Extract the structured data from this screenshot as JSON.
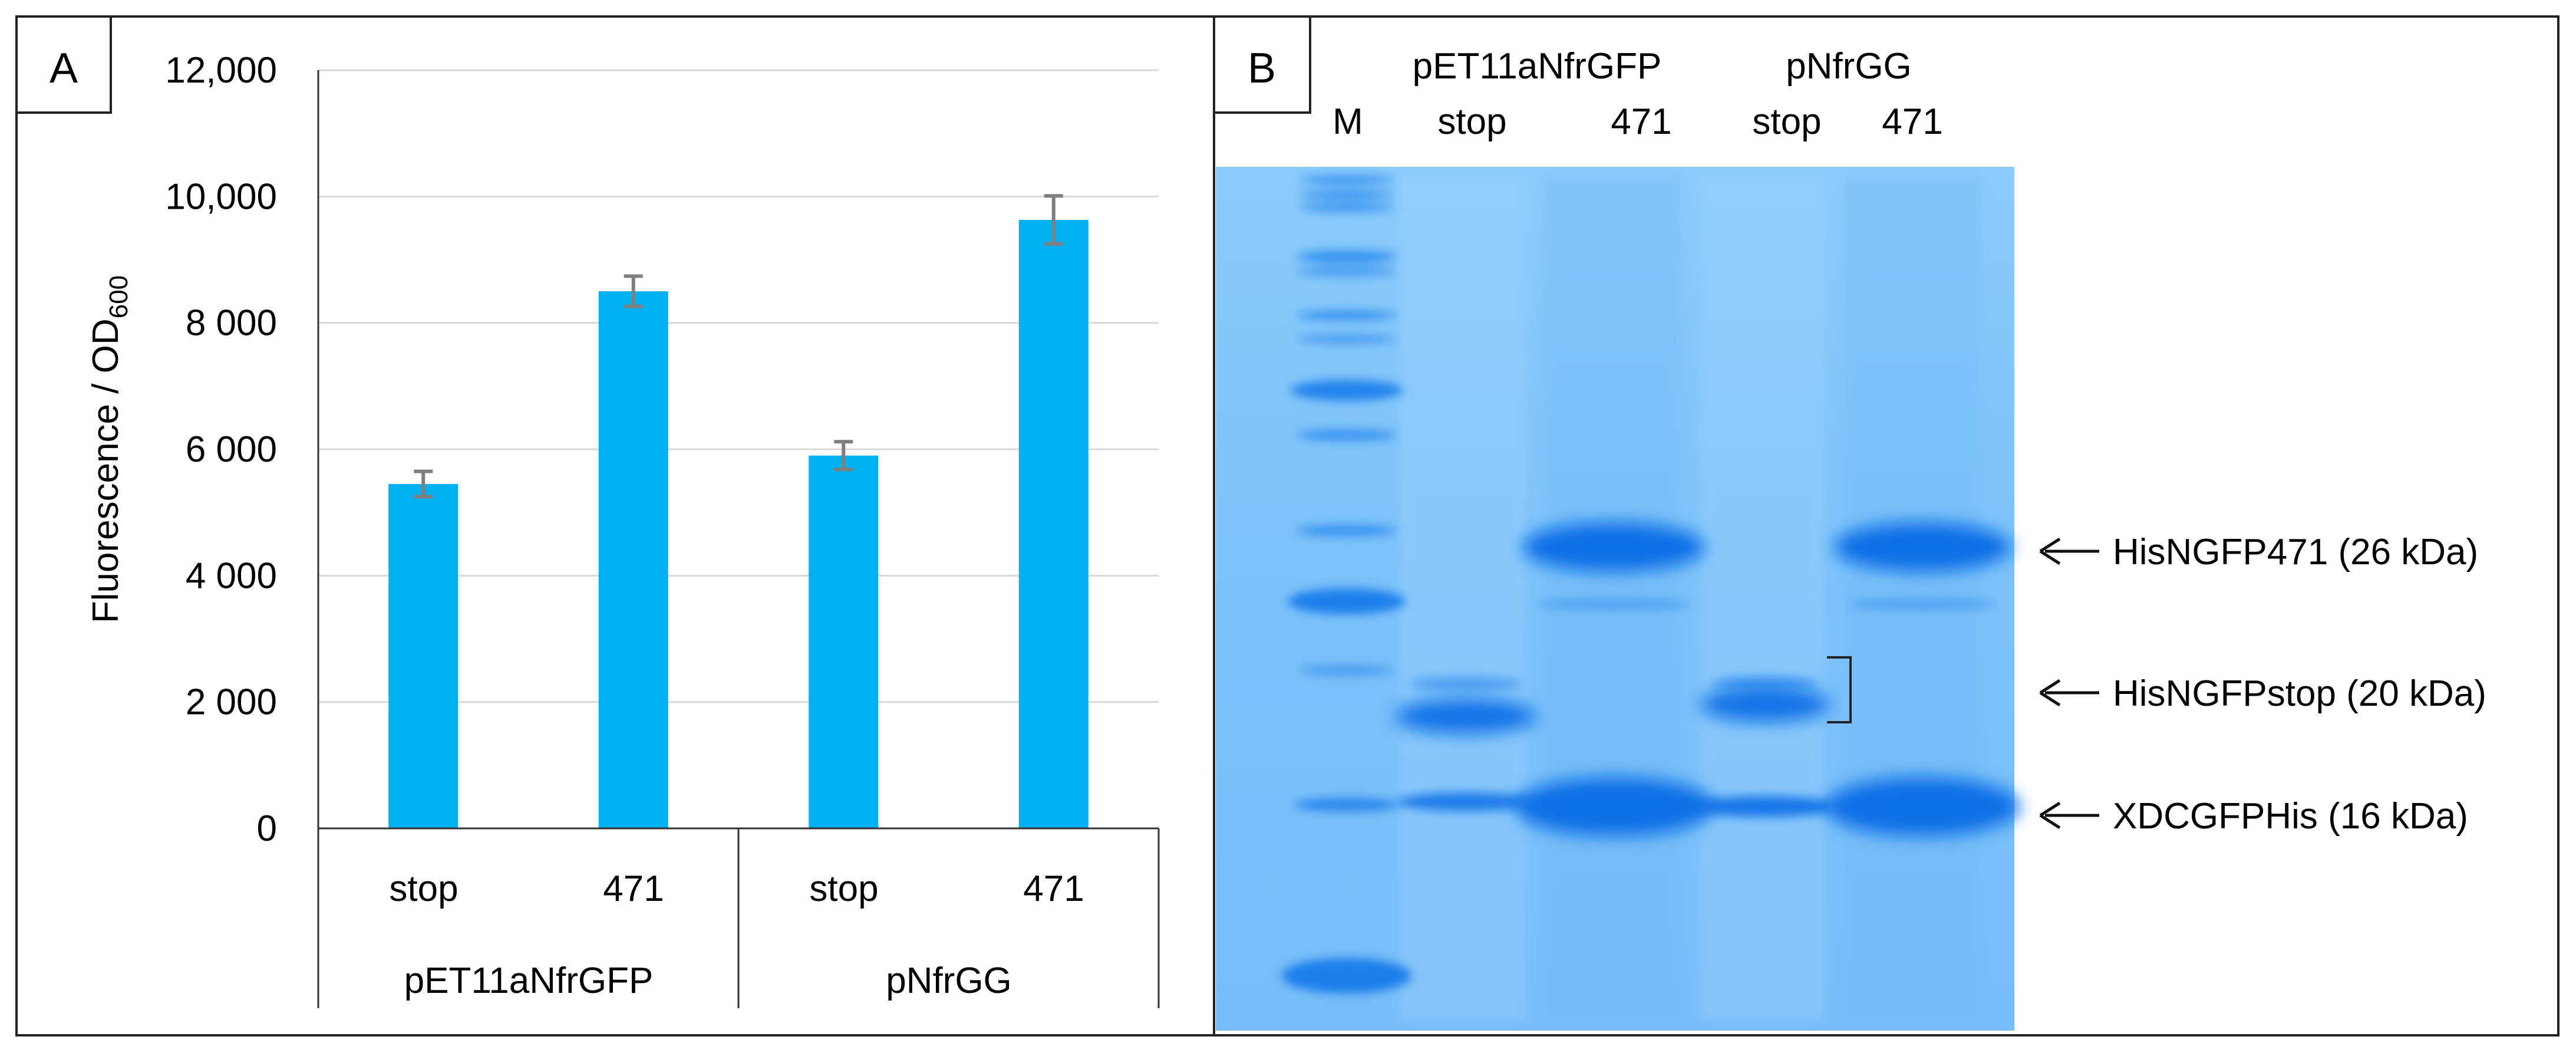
{
  "panel_a": {
    "label": "A",
    "ylabel_main": "Fluorescence / OD",
    "ylabel_sub": "600",
    "y_ticks": [
      "12,000",
      "10,000",
      "8 000",
      "6 000",
      "4 000",
      "2 000",
      "0"
    ],
    "groups": [
      {
        "name": "pET11aNfrGFP",
        "categories": [
          "stop",
          "471"
        ]
      },
      {
        "name": "pNfrGG",
        "categories": [
          "stop",
          "471"
        ]
      }
    ],
    "colors": {
      "bar": "#00B0F0",
      "error_bar": "#7f7f7f",
      "gridline": "#d9d9d9"
    }
  },
  "chart_data": {
    "type": "bar",
    "categories": [
      "stop",
      "471",
      "stop",
      "471"
    ],
    "group_labels": [
      "pET11aNfrGFP",
      "pNfrGG"
    ],
    "values": [
      5450,
      8500,
      5900,
      9630
    ],
    "errors": [
      200,
      240,
      220,
      380
    ],
    "xlabel": "",
    "ylabel": "Fluorescence / OD600",
    "ylim": [
      0,
      12000
    ],
    "yticks": [
      0,
      2000,
      4000,
      6000,
      8000,
      10000,
      12000
    ],
    "grid": true
  },
  "panel_b": {
    "label": "B",
    "lane_marker": "M",
    "plasmid_1": "pET11aNfrGFP",
    "plasmid_2": "pNfrGG",
    "lanes": [
      "stop",
      "471",
      "stop",
      "471"
    ],
    "bands": [
      {
        "label": "HisNGFP471 (26 kDa)"
      },
      {
        "label": "HisNGFPstop (20 kDa)"
      },
      {
        "label": "XDCGFPHis (16 kDa)"
      }
    ],
    "colors": {
      "gel_background": "#7fc3fb",
      "band": "#0a6fe6"
    }
  }
}
